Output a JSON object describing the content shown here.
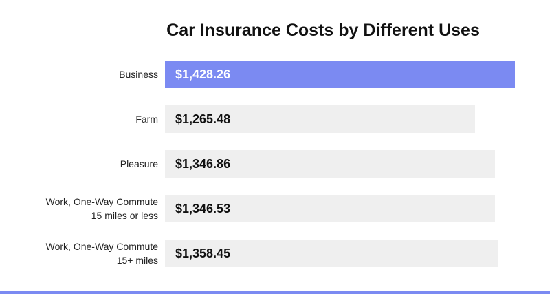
{
  "chart_data": {
    "type": "bar",
    "orientation": "horizontal",
    "title": "Car Insurance Costs by Different Uses",
    "categories": [
      [
        "Business"
      ],
      [
        "Farm"
      ],
      [
        "Pleasure"
      ],
      [
        "Work, One-Way Commute",
        "15 miles or less"
      ],
      [
        "Work, One-Way Commute",
        "15+ miles"
      ]
    ],
    "values": [
      1428.26,
      1265.48,
      1346.86,
      1346.53,
      1358.45
    ],
    "value_labels": [
      "$1,428.26",
      "$1,265.48",
      "$1,346.86",
      "$1,346.53",
      "$1,358.45"
    ],
    "highlight_index": 0,
    "xlim": [
      0,
      1428.26
    ],
    "grid": false,
    "legend": "none"
  },
  "colors": {
    "highlight": "#7b8af2",
    "bar": "#efefef",
    "bottom_rule": "#7b8af2"
  }
}
